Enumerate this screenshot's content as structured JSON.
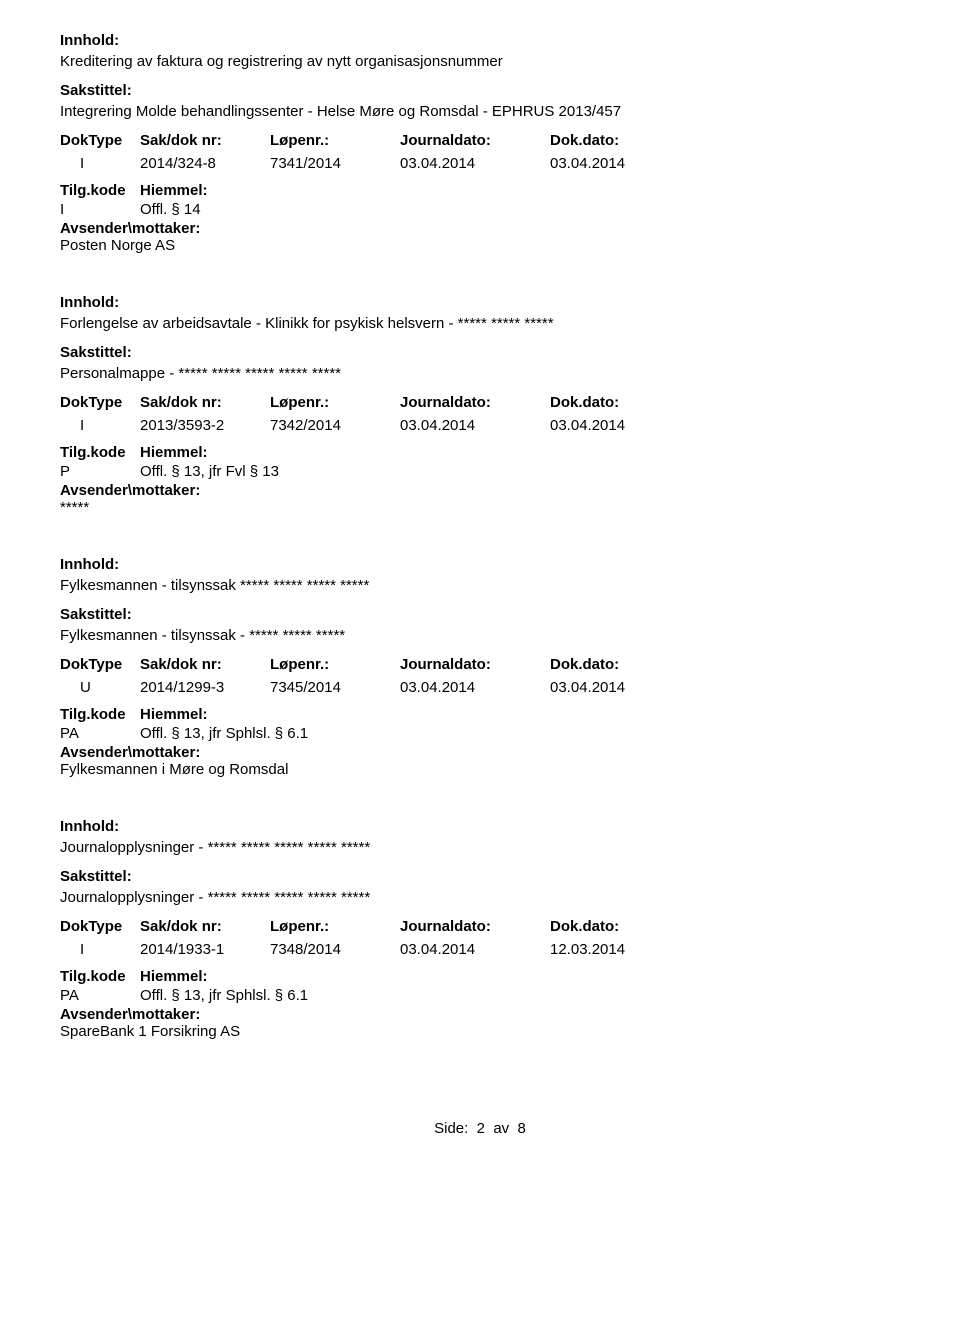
{
  "labels": {
    "innhold": "Innhold:",
    "sakstittel": "Sakstittel:",
    "doktype": "DokType",
    "saknr": "Sak/dok nr:",
    "lopenr": "Løpenr.:",
    "journaldato": "Journaldato:",
    "dokdato": "Dok.dato:",
    "tilgkode": "Tilg.kode",
    "hjemmel": "Hiemmel:",
    "avsender": "Avsender\\mottaker:"
  },
  "records": [
    {
      "innhold": "Kreditering av faktura og registrering av nytt organisasjonsnummer",
      "sakstittel": "Integrering Molde behandlingssenter - Helse Møre og Romsdal - EPHRUS 2013/457",
      "doktype": "I",
      "saknr": "2014/324-8",
      "lopenr": "7341/2014",
      "journaldato": "03.04.2014",
      "dokdato": "03.04.2014",
      "tilgkode": "I",
      "hjemmel": "Offl. § 14",
      "avsender": "Posten Norge AS"
    },
    {
      "innhold": "Forlengelse av arbeidsavtale - Klinikk for psykisk helsvern - ***** ***** *****",
      "sakstittel": "Personalmappe - ***** ***** *****  ***** *****",
      "doktype": "I",
      "saknr": "2013/3593-2",
      "lopenr": "7342/2014",
      "journaldato": "03.04.2014",
      "dokdato": "03.04.2014",
      "tilgkode": "P",
      "hjemmel": "Offl. § 13, jfr Fvl § 13",
      "avsender": "*****"
    },
    {
      "innhold": "Fylkesmannen - tilsynssak ***** ***** ***** *****",
      "sakstittel": "Fylkesmannen - tilsynssak - ***** ***** *****",
      "doktype": "U",
      "saknr": "2014/1299-3",
      "lopenr": "7345/2014",
      "journaldato": "03.04.2014",
      "dokdato": "03.04.2014",
      "tilgkode": "PA",
      "hjemmel": "Offl. § 13, jfr Sphlsl. § 6.1",
      "avsender": "Fylkesmannen i Møre og Romsdal"
    },
    {
      "innhold": "Journalopplysninger - ***** ***** ***** ***** *****",
      "sakstittel": "Journalopplysninger - ***** ***** ***** ***** *****",
      "doktype": "I",
      "saknr": "2014/1933-1",
      "lopenr": "7348/2014",
      "journaldato": "03.04.2014",
      "dokdato": "12.03.2014",
      "tilgkode": "PA",
      "hjemmel": "Offl. § 13, jfr Sphlsl. § 6.1",
      "avsender": "SpareBank 1 Forsikring AS"
    }
  ],
  "footer": {
    "side": "Side:",
    "page": "2",
    "av": "av",
    "total": "8"
  }
}
